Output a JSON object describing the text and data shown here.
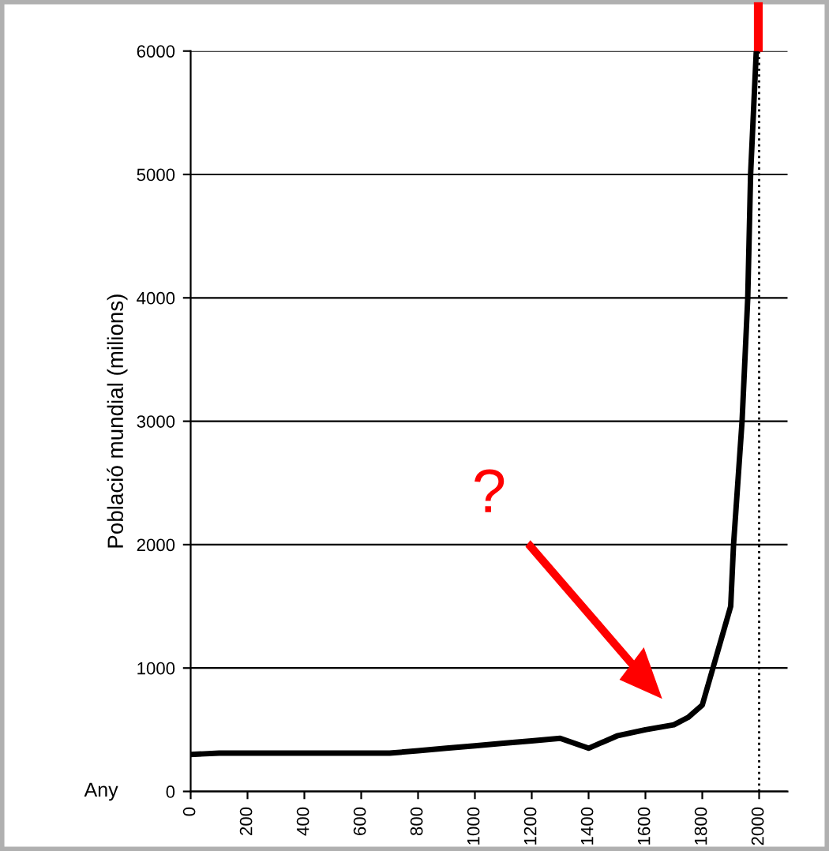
{
  "chart_data": {
    "type": "line",
    "xlabel": "Any",
    "ylabel": "Població mundial (milions)",
    "x": [
      0,
      100,
      200,
      300,
      400,
      500,
      600,
      700,
      800,
      900,
      1000,
      1100,
      1200,
      1300,
      1400,
      1500,
      1600,
      1700,
      1750,
      1800,
      1850,
      1900,
      1910,
      1940,
      1960,
      1970,
      1990
    ],
    "series": [
      {
        "color": "#000000",
        "values": [
          300,
          310,
          310,
          310,
          310,
          310,
          310,
          310,
          330,
          350,
          370,
          390,
          410,
          430,
          350,
          450,
          500,
          540,
          600,
          700,
          1100,
          1500,
          2000,
          3000,
          4000,
          5000,
          6000
        ]
      }
    ],
    "xlim": [
      0,
      2100
    ],
    "xticks": [
      0,
      200,
      400,
      600,
      800,
      1000,
      1200,
      1400,
      1600,
      1800,
      2000
    ],
    "ylim": [
      0,
      6000
    ],
    "yticks": [
      0,
      1000,
      2000,
      3000,
      4000,
      5000,
      6000
    ],
    "grid": "y",
    "marker": "none",
    "line_style": "solid",
    "ref_lines": [
      {
        "axis": "x",
        "value": 2000,
        "color": "#000000",
        "line_style": "dotted"
      }
    ],
    "annotations": [
      "?"
    ]
  }
}
